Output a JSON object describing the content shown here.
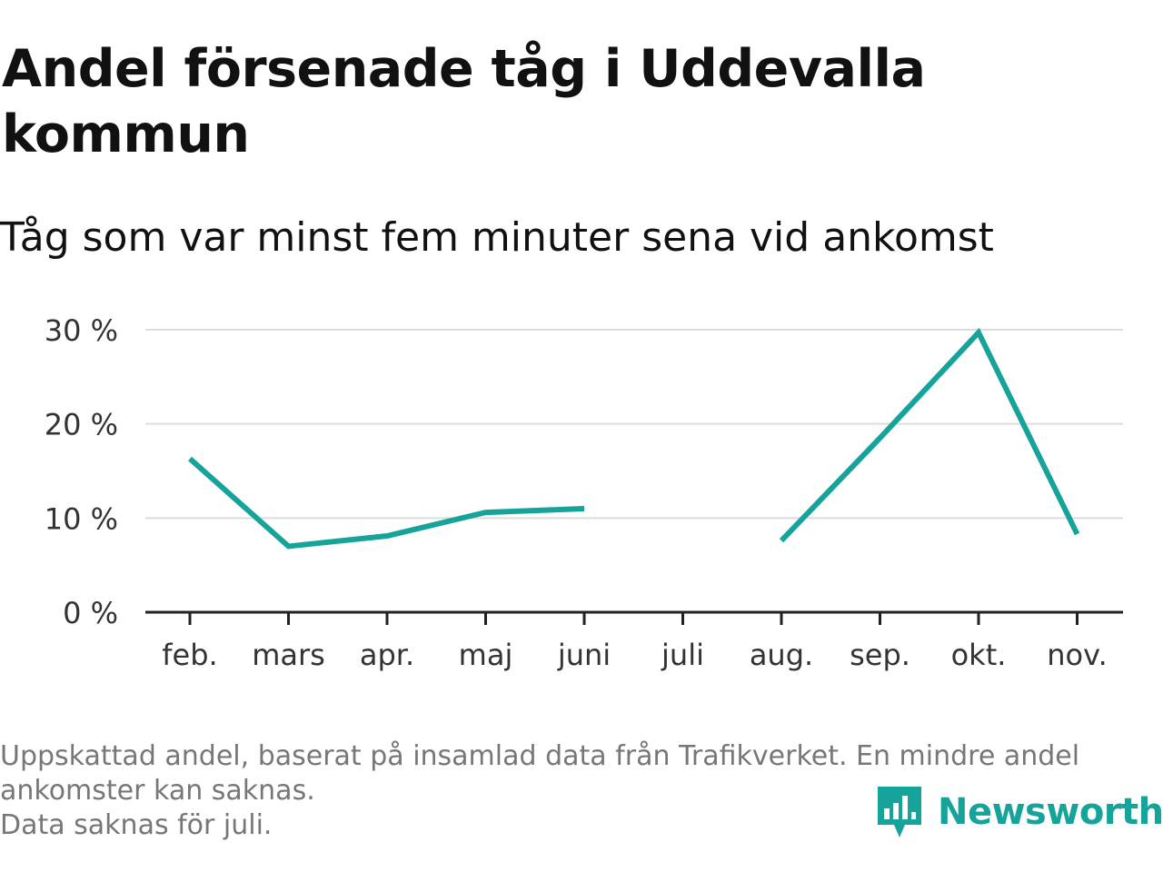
{
  "header": {
    "title": "Andel försenade tåg i Uddevalla kommun",
    "subtitle": "Tåg som var minst fem minuter sena vid ankomst"
  },
  "chart_data": {
    "type": "line",
    "categories": [
      "feb.",
      "mars",
      "apr.",
      "maj",
      "juni",
      "juli",
      "aug.",
      "sep.",
      "okt.",
      "nov."
    ],
    "series": [
      {
        "values": [
          16.3,
          7.0,
          8.1,
          10.6,
          11.0,
          null,
          7.6,
          18.5,
          29.7,
          8.3
        ],
        "color": "#16a39a"
      }
    ],
    "yticks": [
      0,
      10,
      20,
      30
    ],
    "ytick_labels": [
      "0 %",
      "10 %",
      "20 %",
      "30 %"
    ],
    "ylim": [
      0,
      30
    ],
    "grid": true,
    "xlabel": "",
    "ylabel": "",
    "colors": {
      "line": "#16a39a",
      "grid": "#dddddd",
      "axis": "#222222"
    }
  },
  "footnote": {
    "line1": "Uppskattad andel, baserat på insamlad data från Trafikverket. En mindre andel",
    "line2": "ankomster kan saknas.",
    "line3": "Data saknas för juli."
  },
  "brand": {
    "name": "Newsworthy",
    "icon": "newsworthy-logo-icon",
    "color": "#16a39a"
  }
}
